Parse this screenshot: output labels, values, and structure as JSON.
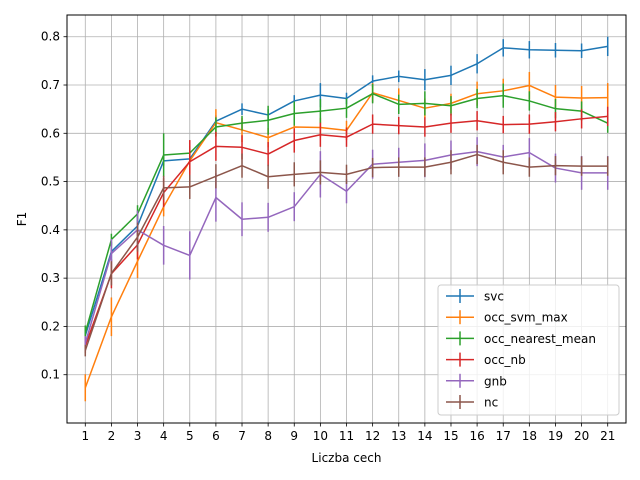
{
  "chart_data": {
    "type": "line",
    "title": "",
    "xlabel": "Liczba cech",
    "ylabel": "F1",
    "x": [
      1,
      2,
      3,
      4,
      5,
      6,
      7,
      8,
      9,
      10,
      11,
      12,
      13,
      14,
      15,
      16,
      17,
      18,
      19,
      20,
      21
    ],
    "xlim": [
      0.3,
      21.7
    ],
    "ylim": [
      0.0,
      0.845
    ],
    "yticks": [
      "0.1",
      "0.2",
      "0.3",
      "0.4",
      "0.5",
      "0.6",
      "0.7",
      "0.8"
    ],
    "grid": true,
    "legend_position": "lower-right",
    "series": [
      {
        "name": "svc",
        "color": "#1f77b4",
        "values": [
          0.181,
          0.355,
          0.408,
          0.543,
          0.547,
          0.625,
          0.65,
          0.638,
          0.667,
          0.679,
          0.672,
          0.708,
          0.718,
          0.711,
          0.72,
          0.744,
          0.777,
          0.773,
          0.772,
          0.771,
          0.78
        ],
        "errors": [
          0.015,
          0.02,
          0.02,
          0.01,
          0.01,
          0.012,
          0.012,
          0.012,
          0.012,
          0.025,
          0.012,
          0.012,
          0.012,
          0.022,
          0.02,
          0.02,
          0.018,
          0.018,
          0.015,
          0.015,
          0.02
        ]
      },
      {
        "name": "occ_svm_max",
        "color": "#ff7f0e",
        "values": [
          0.073,
          0.22,
          0.335,
          0.448,
          0.543,
          0.622,
          0.607,
          0.591,
          0.613,
          0.612,
          0.606,
          0.684,
          0.668,
          0.652,
          0.662,
          0.682,
          0.688,
          0.699,
          0.675,
          0.673,
          0.674
        ],
        "errors": [
          0.028,
          0.04,
          0.035,
          0.02,
          0.025,
          0.028,
          0.025,
          0.02,
          0.02,
          0.02,
          0.02,
          0.02,
          0.025,
          0.02,
          0.02,
          0.025,
          0.025,
          0.028,
          0.025,
          0.025,
          0.03
        ]
      },
      {
        "name": "occ_nearest_mean",
        "color": "#2ca02c",
        "values": [
          0.187,
          0.38,
          0.433,
          0.555,
          0.559,
          0.613,
          0.621,
          0.627,
          0.641,
          0.646,
          0.652,
          0.682,
          0.66,
          0.662,
          0.657,
          0.672,
          0.678,
          0.667,
          0.651,
          0.646,
          0.621
        ],
        "errors": [
          0.015,
          0.012,
          0.018,
          0.045,
          0.015,
          0.02,
          0.015,
          0.03,
          0.025,
          0.025,
          0.02,
          0.02,
          0.02,
          0.025,
          0.02,
          0.02,
          0.025,
          0.02,
          0.02,
          0.02,
          0.02
        ]
      },
      {
        "name": "occ_nb",
        "color": "#d62728",
        "values": [
          0.16,
          0.309,
          0.369,
          0.477,
          0.541,
          0.573,
          0.571,
          0.557,
          0.585,
          0.597,
          0.592,
          0.619,
          0.616,
          0.613,
          0.621,
          0.626,
          0.618,
          0.619,
          0.624,
          0.63,
          0.635
        ],
        "errors": [
          0.015,
          0.03,
          0.03,
          0.03,
          0.045,
          0.03,
          0.025,
          0.025,
          0.025,
          0.025,
          0.02,
          0.02,
          0.018,
          0.02,
          0.02,
          0.02,
          0.018,
          0.02,
          0.02,
          0.02,
          0.02
        ]
      },
      {
        "name": "gnb",
        "color": "#9467bd",
        "values": [
          0.165,
          0.351,
          0.4,
          0.368,
          0.347,
          0.467,
          0.422,
          0.426,
          0.448,
          0.515,
          0.48,
          0.536,
          0.54,
          0.544,
          0.555,
          0.562,
          0.551,
          0.56,
          0.528,
          0.518,
          0.518
        ],
        "errors": [
          0.015,
          0.03,
          0.04,
          0.04,
          0.05,
          0.05,
          0.035,
          0.03,
          0.03,
          0.048,
          0.025,
          0.03,
          0.03,
          0.035,
          0.03,
          0.03,
          0.025,
          0.03,
          0.03,
          0.035,
          0.035
        ]
      },
      {
        "name": "nc",
        "color": "#8c564b",
        "values": [
          0.15,
          0.31,
          0.385,
          0.487,
          0.489,
          0.511,
          0.533,
          0.51,
          0.515,
          0.519,
          0.515,
          0.529,
          0.53,
          0.53,
          0.54,
          0.556,
          0.54,
          0.53,
          0.533,
          0.532,
          0.532
        ],
        "errors": [
          0.012,
          0.025,
          0.03,
          0.025,
          0.025,
          0.025,
          0.025,
          0.025,
          0.025,
          0.025,
          0.02,
          0.02,
          0.02,
          0.02,
          0.025,
          0.02,
          0.025,
          0.02,
          0.02,
          0.02,
          0.02
        ]
      }
    ]
  }
}
